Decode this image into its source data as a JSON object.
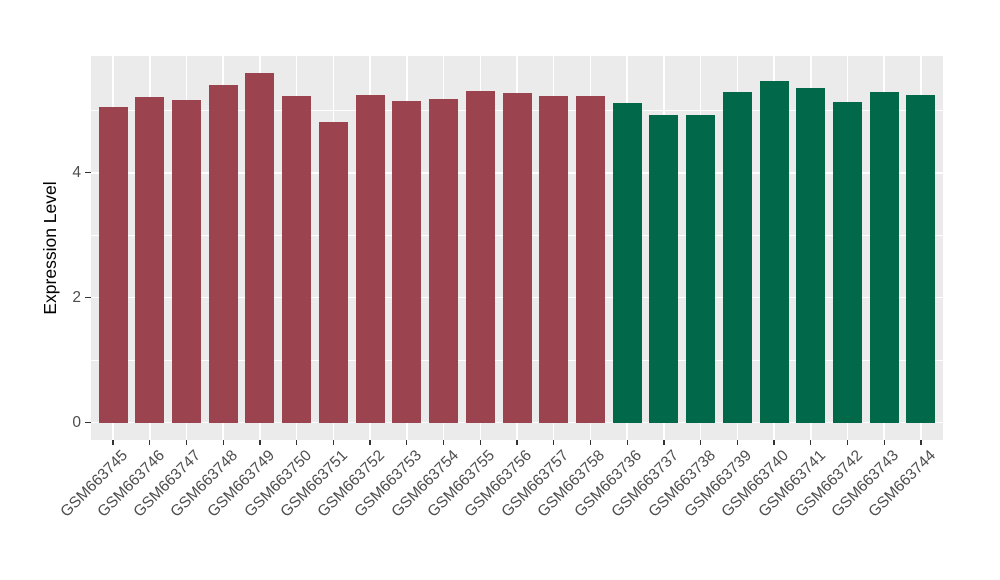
{
  "chart_data": {
    "type": "bar",
    "title": "",
    "xlabel": "",
    "ylabel": "Expression Level",
    "categories": [
      "GSM663745",
      "GSM663746",
      "GSM663747",
      "GSM663748",
      "GSM663749",
      "GSM663750",
      "GSM663751",
      "GSM663752",
      "GSM663753",
      "GSM663754",
      "GSM663755",
      "GSM663756",
      "GSM663757",
      "GSM663758",
      "GSM663736",
      "GSM663737",
      "GSM663738",
      "GSM663739",
      "GSM663740",
      "GSM663741",
      "GSM663742",
      "GSM663743",
      "GSM663744"
    ],
    "values": [
      5.06,
      5.21,
      5.16,
      5.41,
      5.59,
      5.23,
      4.81,
      5.24,
      5.15,
      5.18,
      5.31,
      5.27,
      5.23,
      5.23,
      5.12,
      4.93,
      4.93,
      5.3,
      5.47,
      5.35,
      5.13,
      5.29,
      5.24
    ],
    "group_split_index": 14,
    "group_colors": [
      "#9B4450",
      "#016849"
    ],
    "yticks": [
      "0",
      "2",
      "4"
    ],
    "ytick_values": [
      0,
      2,
      4
    ],
    "ytick_minor_values": [
      1,
      3,
      5
    ],
    "ylim": [
      -0.28,
      5.87
    ],
    "grid": true,
    "legend_position": "none",
    "colors": {
      "panel_background": "#EBEBEB",
      "grid": "#FFFFFF",
      "tick_mark": "#333333",
      "tick_label": "#4D4D4D",
      "axis_title": "#000000",
      "figure_background": "#FFFFFF"
    }
  }
}
